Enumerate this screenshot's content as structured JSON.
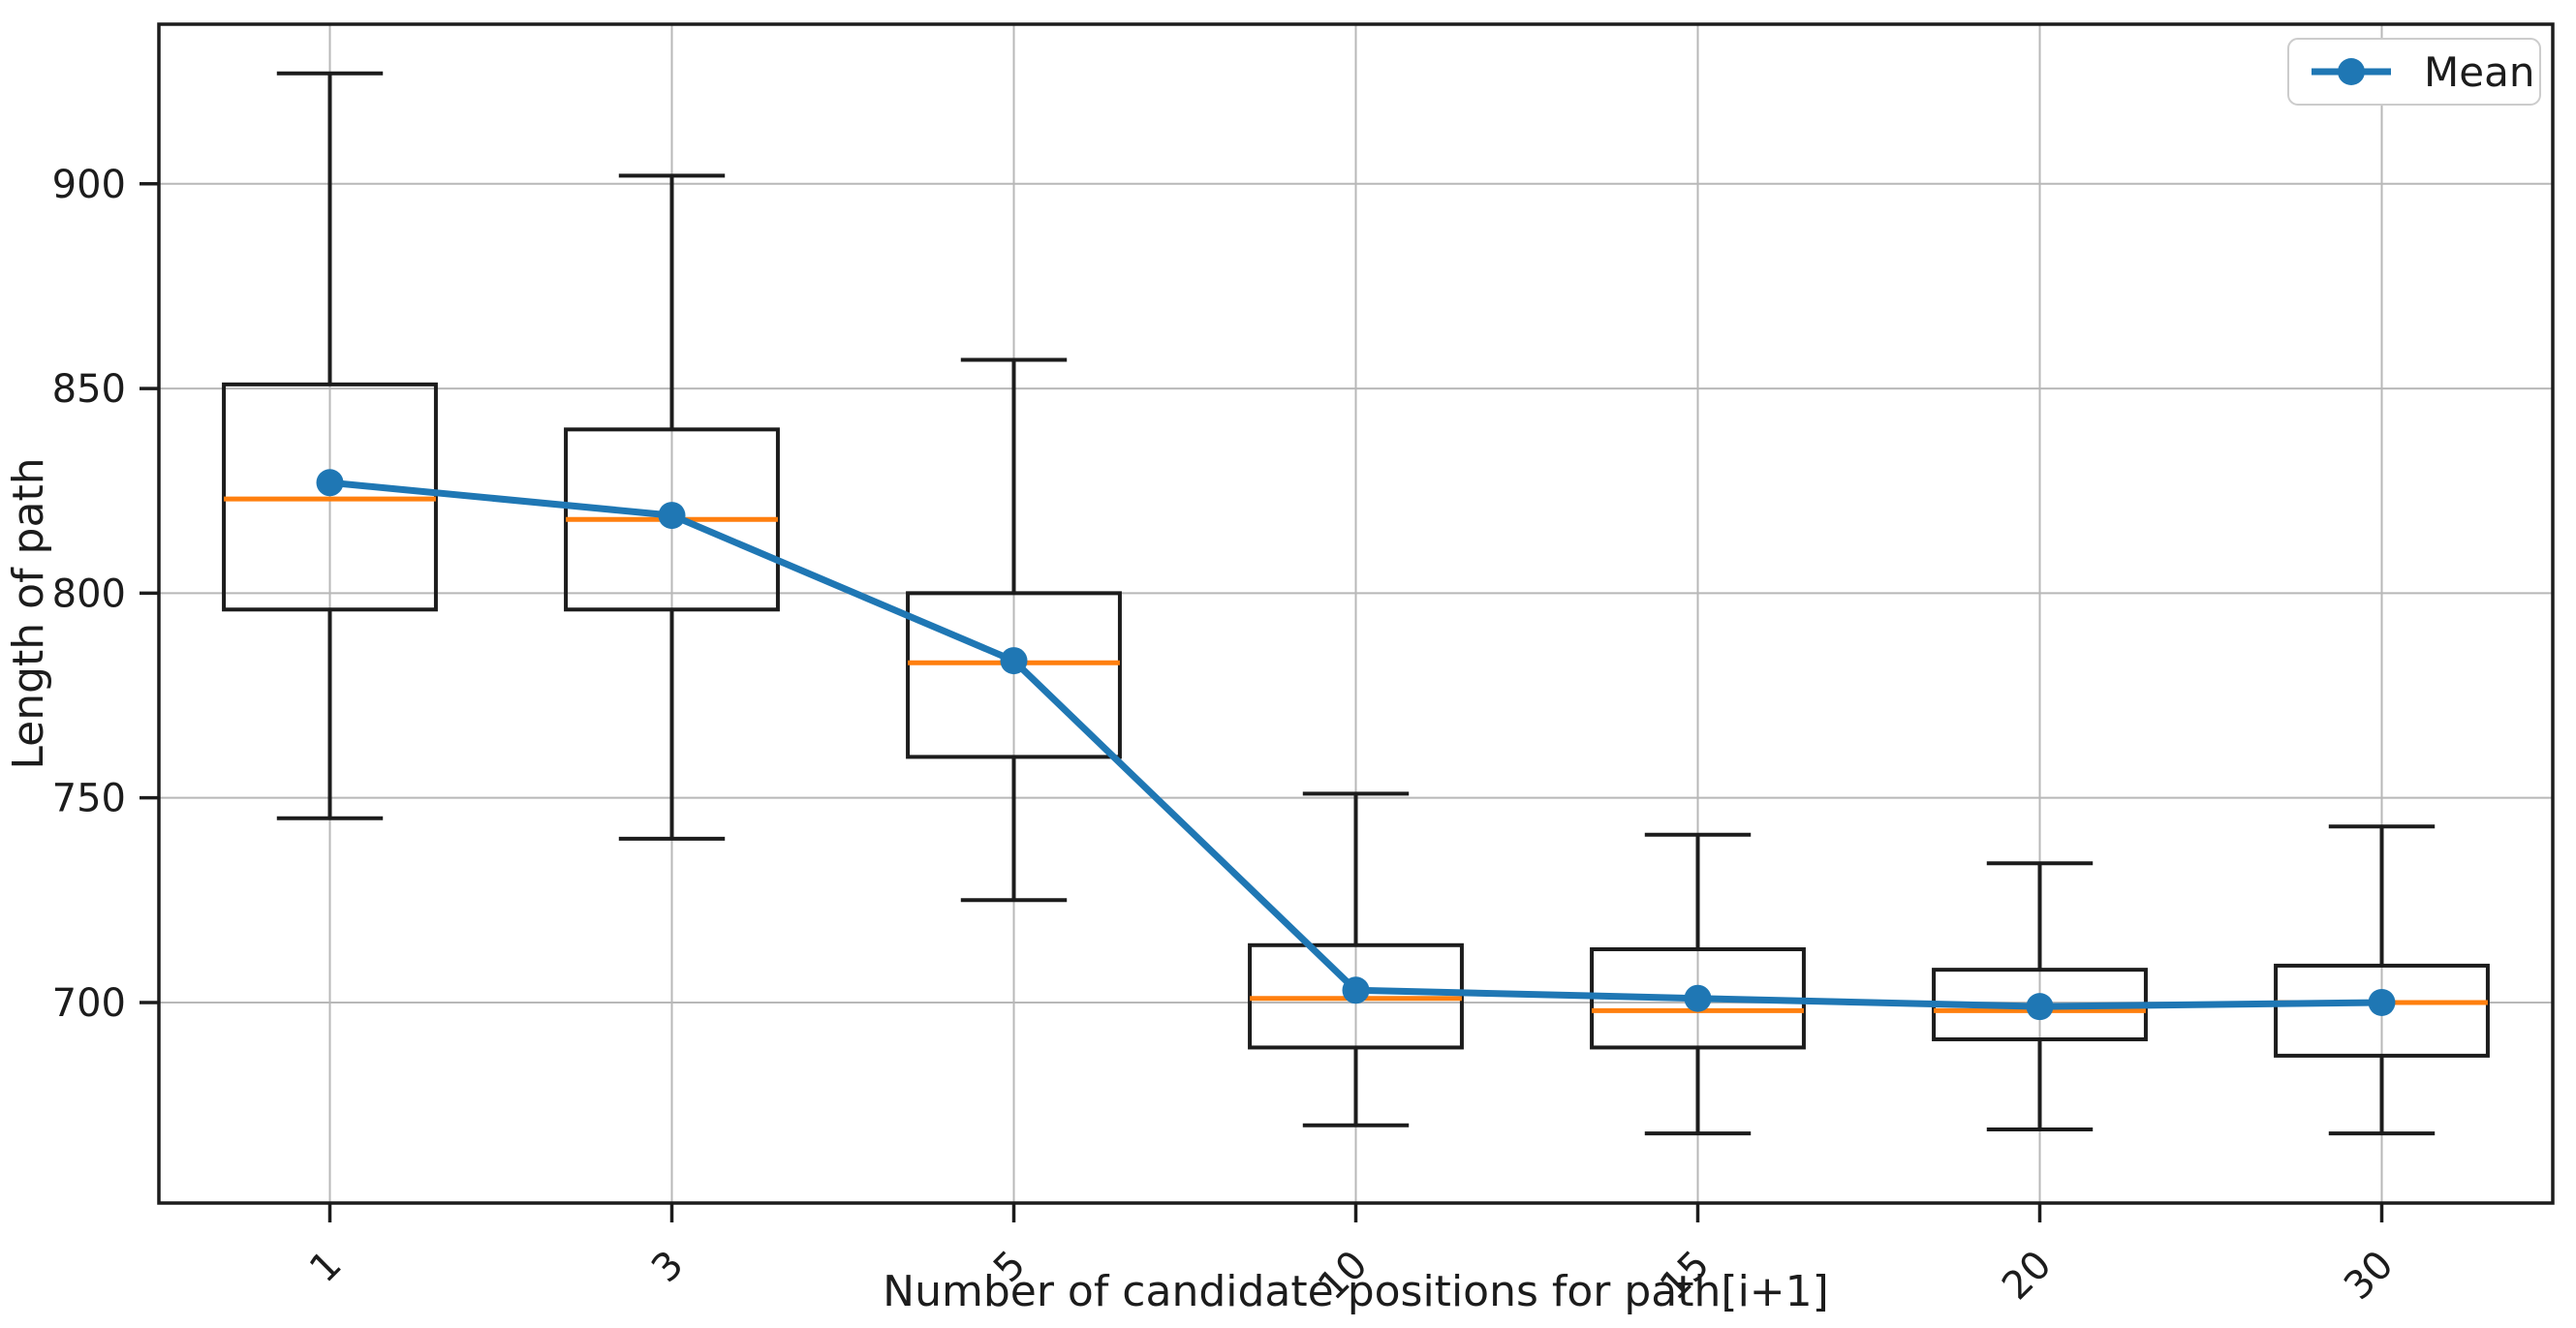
{
  "chart_data": {
    "type": "boxplot",
    "title": "",
    "xlabel": "Number of candidate positions for path[i+1]",
    "ylabel": "Length of path",
    "categories": [
      "1",
      "3",
      "5",
      "10",
      "15",
      "20",
      "30"
    ],
    "yticks": [
      700,
      750,
      800,
      850,
      900
    ],
    "ylim": [
      651,
      939
    ],
    "grid": true,
    "legend": {
      "label": "Mean",
      "location": "upper right",
      "marker": "circle"
    },
    "boxes": [
      {
        "category": "1",
        "whisker_low": 745,
        "q1": 796,
        "median": 823,
        "q3": 851,
        "whisker_high": 927,
        "mean": 827
      },
      {
        "category": "3",
        "whisker_low": 740,
        "q1": 796,
        "median": 818,
        "q3": 840,
        "whisker_high": 902,
        "mean": 819
      },
      {
        "category": "5",
        "whisker_low": 725,
        "q1": 760,
        "median": 783,
        "q3": 800,
        "whisker_high": 857,
        "mean": 783.5
      },
      {
        "category": "10",
        "whisker_low": 670,
        "q1": 689,
        "median": 701,
        "q3": 714,
        "whisker_high": 751,
        "mean": 703
      },
      {
        "category": "15",
        "whisker_low": 668,
        "q1": 689,
        "median": 698,
        "q3": 713,
        "whisker_high": 741,
        "mean": 701
      },
      {
        "category": "20",
        "whisker_low": 669,
        "q1": 691,
        "median": 698,
        "q3": 708,
        "whisker_high": 734,
        "mean": 699
      },
      {
        "category": "30",
        "whisker_low": 668,
        "q1": 687,
        "median": 700,
        "q3": 709,
        "whisker_high": 743,
        "mean": 700
      }
    ],
    "mean_series": {
      "name": "Mean",
      "values": [
        827,
        819,
        783.5,
        703,
        701,
        699,
        700
      ]
    },
    "colors": {
      "mean_line": "#1f77b4",
      "median_line": "#ff7f0e",
      "box_line": "#1c1c1c",
      "grid_line": "#b8b8b8",
      "frame": "#1c1c1c",
      "tick": "#1c1c1c",
      "text": "#1c1c1c",
      "legend_border": "#cccccc",
      "background": "#ffffff"
    }
  }
}
